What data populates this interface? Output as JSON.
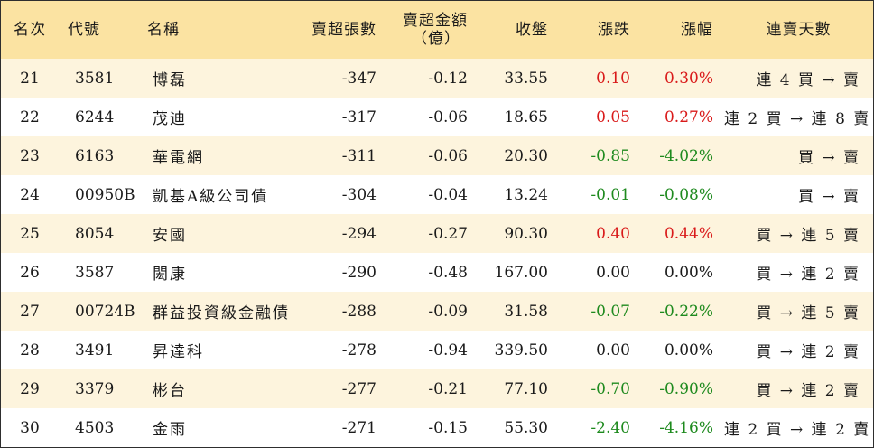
{
  "headers": {
    "rank": "名次",
    "code": "代號",
    "name": "名稱",
    "net_sell_lots": "賣超張數",
    "net_sell_amount_line1": "賣超金額",
    "net_sell_amount_line2": "（億）",
    "close": "收盤",
    "change": "漲跌",
    "change_pct": "漲幅",
    "sell_days": "連賣天數"
  },
  "rows": [
    {
      "rank": "21",
      "code": "3581",
      "name": "博磊",
      "lots": "-347",
      "amount": "-0.12",
      "close": "33.55",
      "change": "0.10",
      "pct": "0.30%",
      "days": "連 4 買 → 賣",
      "trend": "up"
    },
    {
      "rank": "22",
      "code": "6244",
      "name": "茂迪",
      "lots": "-317",
      "amount": "-0.06",
      "close": "18.65",
      "change": "0.05",
      "pct": "0.27%",
      "days": "連 2 買 → 連 8 賣",
      "trend": "up"
    },
    {
      "rank": "23",
      "code": "6163",
      "name": "華電網",
      "lots": "-311",
      "amount": "-0.06",
      "close": "20.30",
      "change": "-0.85",
      "pct": "-4.02%",
      "days": "買 → 賣",
      "trend": "down"
    },
    {
      "rank": "24",
      "code": "00950B",
      "name": "凱基A級公司債",
      "lots": "-304",
      "amount": "-0.04",
      "close": "13.24",
      "change": "-0.01",
      "pct": "-0.08%",
      "days": "買 → 賣",
      "trend": "down"
    },
    {
      "rank": "25",
      "code": "8054",
      "name": "安國",
      "lots": "-294",
      "amount": "-0.27",
      "close": "90.30",
      "change": "0.40",
      "pct": "0.44%",
      "days": "買 → 連 5 賣",
      "trend": "up"
    },
    {
      "rank": "26",
      "code": "3587",
      "name": "閎康",
      "lots": "-290",
      "amount": "-0.48",
      "close": "167.00",
      "change": "0.00",
      "pct": "0.00%",
      "days": "買 → 連 2 賣",
      "trend": "flat"
    },
    {
      "rank": "27",
      "code": "00724B",
      "name": "群益投資級金融債",
      "lots": "-288",
      "amount": "-0.09",
      "close": "31.58",
      "change": "-0.07",
      "pct": "-0.22%",
      "days": "買 → 連 5 賣",
      "trend": "down"
    },
    {
      "rank": "28",
      "code": "3491",
      "name": "昇達科",
      "lots": "-278",
      "amount": "-0.94",
      "close": "339.50",
      "change": "0.00",
      "pct": "0.00%",
      "days": "買 → 連 2 賣",
      "trend": "flat"
    },
    {
      "rank": "29",
      "code": "3379",
      "name": "彬台",
      "lots": "-277",
      "amount": "-0.21",
      "close": "77.10",
      "change": "-0.70",
      "pct": "-0.90%",
      "days": "買 → 連 2 賣",
      "trend": "down"
    },
    {
      "rank": "30",
      "code": "4503",
      "name": "金雨",
      "lots": "-271",
      "amount": "-0.15",
      "close": "55.30",
      "change": "-2.40",
      "pct": "-4.16%",
      "days": "連 2 買 → 連 2 賣",
      "trend": "down"
    }
  ],
  "colors": {
    "header_bg": "#fbe3a2",
    "odd_row_bg": "#fdf4dd",
    "up": "#d91a1a",
    "down": "#1e8a1e"
  }
}
